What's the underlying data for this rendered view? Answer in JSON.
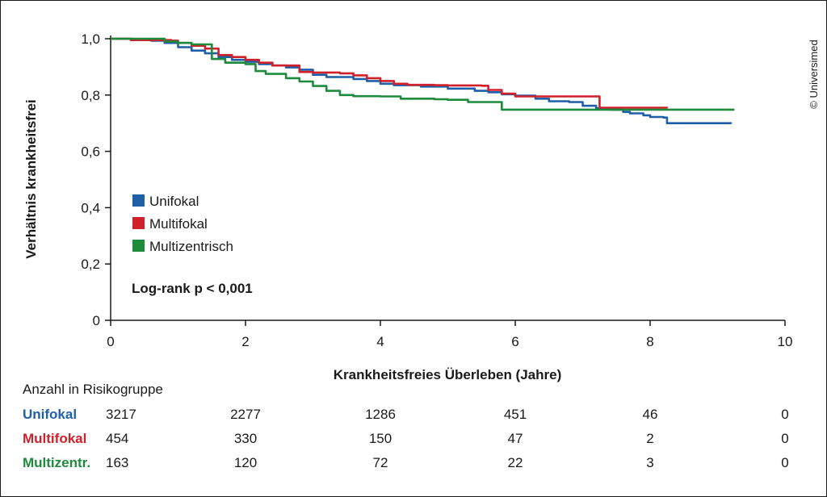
{
  "chart_data": {
    "type": "line",
    "step": true,
    "xlabel": "Krankheitsfreies Überleben (Jahre)",
    "ylabel": "Verhältnis krankheitsfrei",
    "xlim": [
      0,
      10
    ],
    "ylim": [
      0,
      1
    ],
    "x_ticks": [
      0,
      2,
      4,
      6,
      8,
      10
    ],
    "x_tick_labels": [
      "0",
      "2",
      "4",
      "6",
      "8",
      "10"
    ],
    "y_ticks": [
      0,
      0.2,
      0.4,
      0.6,
      0.8,
      1.0
    ],
    "y_tick_labels": [
      "0",
      "0,2",
      "0,4",
      "0,6",
      "0,8",
      "1,0"
    ],
    "grid": false,
    "legend_position": "left-middle",
    "annotation": "Log-rank p < 0,001",
    "copyright": "© Universimed",
    "series": [
      {
        "name": "Unifokal",
        "color": "#1f5fa8",
        "points": [
          [
            0,
            1.0
          ],
          [
            0.3,
            0.997
          ],
          [
            0.6,
            0.993
          ],
          [
            0.8,
            0.985
          ],
          [
            1.0,
            0.97
          ],
          [
            1.2,
            0.958
          ],
          [
            1.4,
            0.948
          ],
          [
            1.6,
            0.935
          ],
          [
            1.8,
            0.925
          ],
          [
            2.0,
            0.918
          ],
          [
            2.2,
            0.91
          ],
          [
            2.4,
            0.905
          ],
          [
            2.6,
            0.898
          ],
          [
            2.8,
            0.89
          ],
          [
            3.0,
            0.872
          ],
          [
            3.2,
            0.864
          ],
          [
            3.6,
            0.857
          ],
          [
            3.8,
            0.85
          ],
          [
            4.0,
            0.84
          ],
          [
            4.2,
            0.835
          ],
          [
            4.6,
            0.83
          ],
          [
            5.0,
            0.823
          ],
          [
            5.4,
            0.815
          ],
          [
            5.6,
            0.81
          ],
          [
            5.8,
            0.803
          ],
          [
            6.0,
            0.798
          ],
          [
            6.3,
            0.787
          ],
          [
            6.5,
            0.778
          ],
          [
            6.8,
            0.775
          ],
          [
            7.0,
            0.762
          ],
          [
            7.2,
            0.753
          ],
          [
            7.4,
            0.748
          ],
          [
            7.6,
            0.74
          ],
          [
            7.7,
            0.735
          ],
          [
            7.9,
            0.728
          ],
          [
            8.0,
            0.722
          ],
          [
            8.2,
            0.72
          ],
          [
            8.25,
            0.7
          ],
          [
            8.6,
            0.7
          ],
          [
            9.2,
            0.698
          ]
        ]
      },
      {
        "name": "Multifokal",
        "color": "#d0202a",
        "points": [
          [
            0,
            1.0
          ],
          [
            0.3,
            0.995
          ],
          [
            0.6,
            0.995
          ],
          [
            0.9,
            0.993
          ],
          [
            1.0,
            0.985
          ],
          [
            1.2,
            0.975
          ],
          [
            1.4,
            0.965
          ],
          [
            1.6,
            0.942
          ],
          [
            1.8,
            0.935
          ],
          [
            2.0,
            0.925
          ],
          [
            2.2,
            0.915
          ],
          [
            2.4,
            0.905
          ],
          [
            2.8,
            0.882
          ],
          [
            3.0,
            0.88
          ],
          [
            3.4,
            0.877
          ],
          [
            3.6,
            0.87
          ],
          [
            3.8,
            0.86
          ],
          [
            4.0,
            0.85
          ],
          [
            4.2,
            0.84
          ],
          [
            4.4,
            0.836
          ],
          [
            4.8,
            0.835
          ],
          [
            5.0,
            0.834
          ],
          [
            5.2,
            0.834
          ],
          [
            5.5,
            0.833
          ],
          [
            5.6,
            0.818
          ],
          [
            5.8,
            0.805
          ],
          [
            6.0,
            0.795
          ],
          [
            6.2,
            0.795
          ],
          [
            7.0,
            0.795
          ],
          [
            7.25,
            0.795
          ],
          [
            7.25,
            0.755
          ],
          [
            8.0,
            0.755
          ],
          [
            8.25,
            0.753
          ]
        ]
      },
      {
        "name": "Multizentrisch",
        "color": "#1e8a3c",
        "points": [
          [
            0,
            1.0
          ],
          [
            0.3,
            1.0
          ],
          [
            0.6,
            1.0
          ],
          [
            0.8,
            0.99
          ],
          [
            1.0,
            0.985
          ],
          [
            1.2,
            0.98
          ],
          [
            1.5,
            0.965
          ],
          [
            1.5,
            0.928
          ],
          [
            1.7,
            0.915
          ],
          [
            2.0,
            0.91
          ],
          [
            2.15,
            0.91
          ],
          [
            2.15,
            0.885
          ],
          [
            2.3,
            0.875
          ],
          [
            2.6,
            0.86
          ],
          [
            2.8,
            0.848
          ],
          [
            3.0,
            0.832
          ],
          [
            3.2,
            0.815
          ],
          [
            3.4,
            0.8
          ],
          [
            3.6,
            0.796
          ],
          [
            4.0,
            0.795
          ],
          [
            4.3,
            0.787
          ],
          [
            4.8,
            0.785
          ],
          [
            5.0,
            0.783
          ],
          [
            5.3,
            0.775
          ],
          [
            5.8,
            0.768
          ],
          [
            5.8,
            0.748
          ],
          [
            6.4,
            0.748
          ],
          [
            7.0,
            0.748
          ],
          [
            7.6,
            0.748
          ],
          [
            8.0,
            0.748
          ],
          [
            9.0,
            0.748
          ],
          [
            9.25,
            0.748
          ]
        ]
      }
    ],
    "risk_table": {
      "title": "Anzahl in Risikogruppe",
      "times": [
        0,
        2,
        4,
        6,
        8,
        10
      ],
      "rows": [
        {
          "label": "Unifokal",
          "color": "#1f5fa8",
          "values": [
            "3217",
            "2277",
            "1286",
            "451",
            "46",
            "0"
          ]
        },
        {
          "label": "Multifokal",
          "color": "#d0202a",
          "values": [
            "454",
            "330",
            "150",
            "47",
            "2",
            "0"
          ]
        },
        {
          "label": "Multizentr.",
          "color": "#1e8a3c",
          "values": [
            "163",
            "120",
            "72",
            "22",
            "3",
            "0"
          ]
        }
      ]
    }
  }
}
